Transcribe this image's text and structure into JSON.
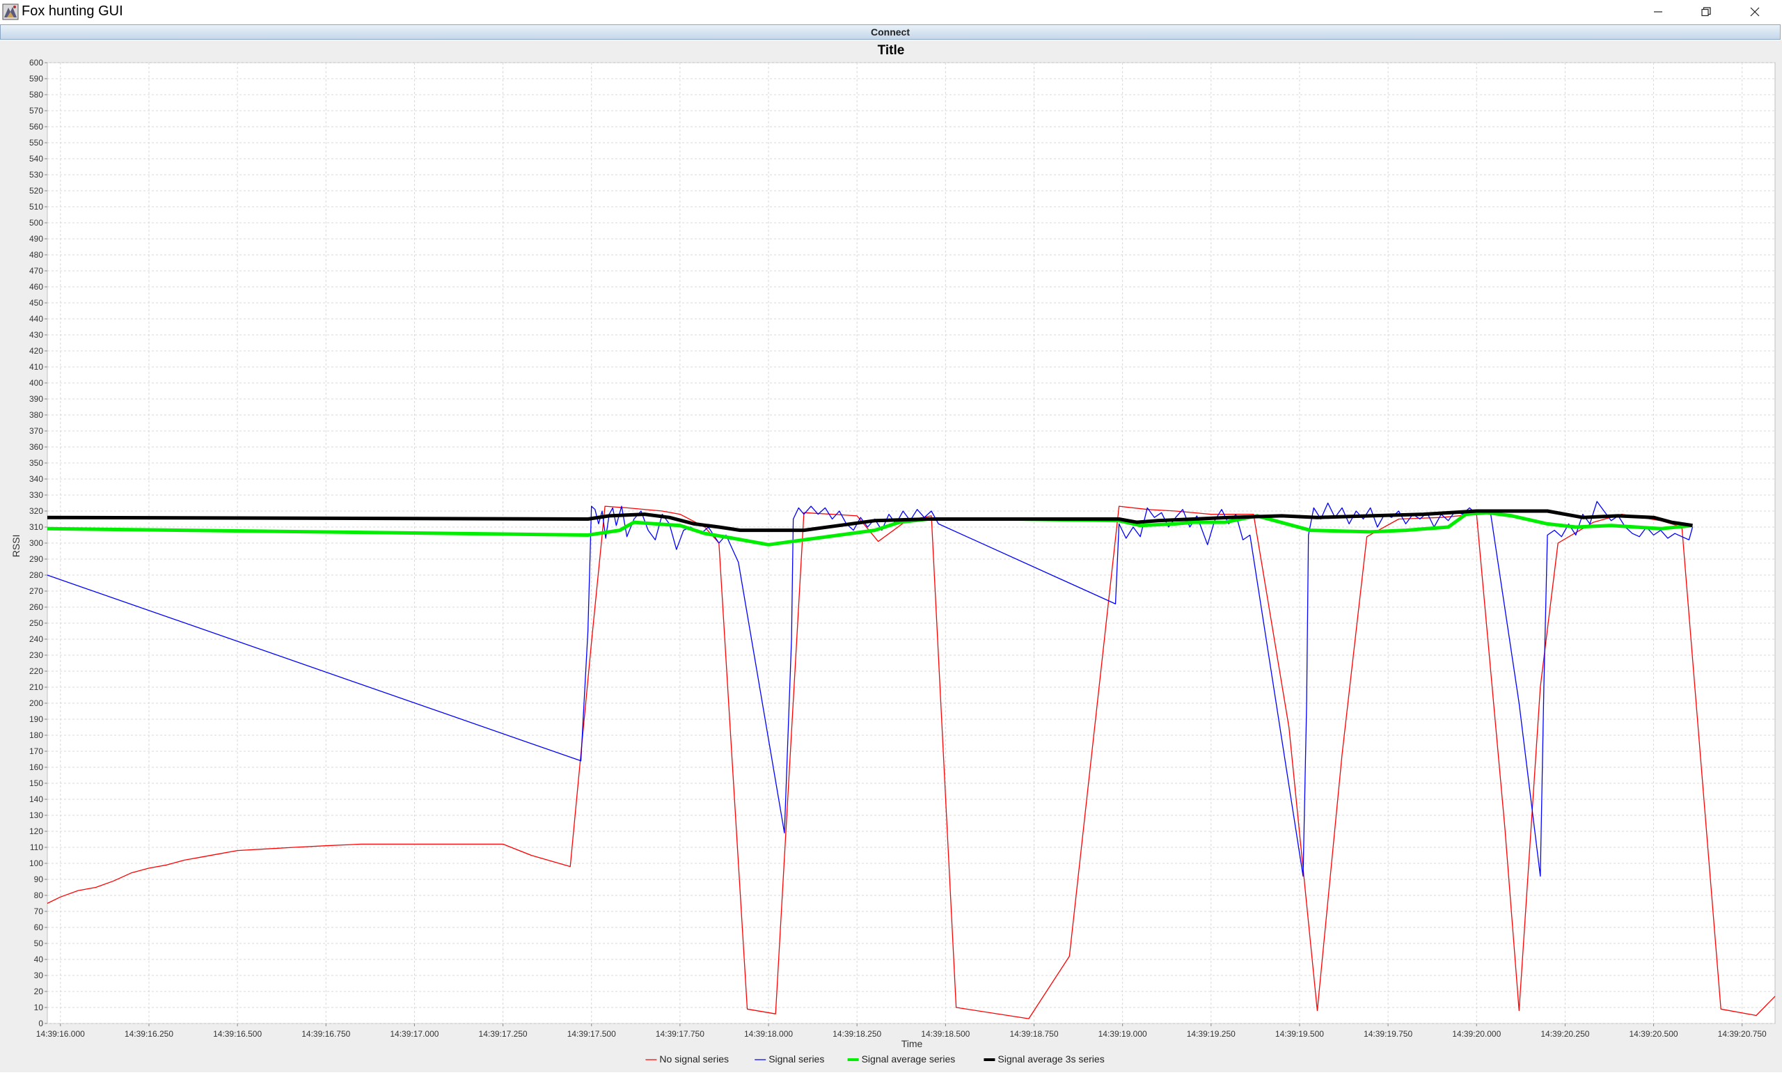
{
  "window": {
    "title": "Fox hunting GUI"
  },
  "toolbar": {
    "connect_label": "Connect"
  },
  "chart_data": {
    "type": "line",
    "title": "Title",
    "xlabel": "Time",
    "ylabel": "RSSI",
    "ylim": [
      0,
      600
    ],
    "xlim": [
      "14:39:15.963",
      "14:39:20.843"
    ],
    "y_ticks": [
      0,
      10,
      20,
      30,
      40,
      50,
      60,
      70,
      80,
      90,
      100,
      110,
      120,
      130,
      140,
      150,
      160,
      170,
      180,
      190,
      200,
      210,
      220,
      230,
      240,
      250,
      260,
      270,
      280,
      290,
      300,
      310,
      320,
      330,
      340,
      350,
      360,
      370,
      380,
      390,
      400,
      410,
      420,
      430,
      440,
      450,
      460,
      470,
      480,
      490,
      500,
      510,
      520,
      530,
      540,
      550,
      560,
      570,
      580,
      590,
      600
    ],
    "x_tick_labels": [
      "14:39:16.000",
      "14:39:16.250",
      "14:39:16.500",
      "14:39:16.750",
      "14:39:17.000",
      "14:39:17.250",
      "14:39:17.500",
      "14:39:17.750",
      "14:39:18.000",
      "14:39:18.250",
      "14:39:18.500",
      "14:39:18.750",
      "14:39:19.000",
      "14:39:19.250",
      "14:39:19.500",
      "14:39:19.750",
      "14:39:20.000",
      "14:39:20.250",
      "14:39:20.500",
      "14:39:20.750"
    ],
    "grid": true,
    "legend_position": "bottom",
    "series": [
      {
        "name": "No signal series",
        "color": "#ff0000",
        "width": 1.3,
        "points": [
          [
            "14:39:15.963",
            75
          ],
          [
            "14:39:16.000",
            79
          ],
          [
            "14:39:16.050",
            83
          ],
          [
            "14:39:16.100",
            85
          ],
          [
            "14:39:16.150",
            89
          ],
          [
            "14:39:16.200",
            94
          ],
          [
            "14:39:16.250",
            97
          ],
          [
            "14:39:16.300",
            99
          ],
          [
            "14:39:16.350",
            102
          ],
          [
            "14:39:16.400",
            104
          ],
          [
            "14:39:16.450",
            106
          ],
          [
            "14:39:16.500",
            108
          ],
          [
            "14:39:16.580",
            109
          ],
          [
            "14:39:16.660",
            110
          ],
          [
            "14:39:16.750",
            111
          ],
          [
            "14:39:16.850",
            112
          ],
          [
            "14:39:17.000",
            112
          ],
          [
            "14:39:17.120",
            112
          ],
          [
            "14:39:17.250",
            112
          ],
          [
            "14:39:17.330",
            105
          ],
          [
            "14:39:17.440",
            98
          ],
          [
            "14:39:17.500",
            238
          ],
          [
            "14:39:17.538",
            323
          ],
          [
            "14:39:17.600",
            322
          ],
          [
            "14:39:17.700",
            320
          ],
          [
            "14:39:17.750",
            318
          ],
          [
            "14:39:17.820",
            310
          ],
          [
            "14:39:17.860",
            300
          ],
          [
            "14:39:17.940",
            9
          ],
          [
            "14:39:18.020",
            6
          ],
          [
            "14:39:18.100",
            319
          ],
          [
            "14:39:18.180",
            318
          ],
          [
            "14:39:18.250",
            317
          ],
          [
            "14:39:18.310",
            301
          ],
          [
            "14:39:18.390",
            314
          ],
          [
            "14:39:18.460",
            317
          ],
          [
            "14:39:18.530",
            10
          ],
          [
            "14:39:18.735",
            3
          ],
          [
            "14:39:18.850",
            42
          ],
          [
            "14:39:18.990",
            323
          ],
          [
            "14:39:19.070",
            321
          ],
          [
            "14:39:19.150",
            320
          ],
          [
            "14:39:19.250",
            318
          ],
          [
            "14:39:19.370",
            318
          ],
          [
            "14:39:19.470",
            185
          ],
          [
            "14:39:19.550",
            8
          ],
          [
            "14:39:19.620",
            168
          ],
          [
            "14:39:19.690",
            304
          ],
          [
            "14:39:19.780",
            315
          ],
          [
            "14:39:19.900",
            316
          ],
          [
            "14:39:20.000",
            318
          ],
          [
            "14:39:20.080",
            122
          ],
          [
            "14:39:20.120",
            8
          ],
          [
            "14:39:20.180",
            210
          ],
          [
            "14:39:20.230",
            300
          ],
          [
            "14:39:20.330",
            313
          ],
          [
            "14:39:20.410",
            318
          ],
          [
            "14:39:20.520",
            314
          ],
          [
            "14:39:20.580",
            310
          ],
          [
            "14:39:20.690",
            9
          ],
          [
            "14:39:20.790",
            5
          ],
          [
            "14:39:20.843",
            17
          ]
        ]
      },
      {
        "name": "Signal series",
        "color": "#0000ff",
        "width": 1.3,
        "points": [
          [
            "14:39:15.963",
            280
          ],
          [
            "14:39:17.470",
            164
          ],
          [
            "14:39:17.490",
            245
          ],
          [
            "14:39:17.500",
            323
          ],
          [
            "14:39:17.510",
            321
          ],
          [
            "14:39:17.520",
            312
          ],
          [
            "14:39:17.530",
            320
          ],
          [
            "14:39:17.540",
            303
          ],
          [
            "14:39:17.550",
            318
          ],
          [
            "14:39:17.560",
            322
          ],
          [
            "14:39:17.570",
            311
          ],
          [
            "14:39:17.585",
            323
          ],
          [
            "14:39:17.600",
            304
          ],
          [
            "14:39:17.620",
            315
          ],
          [
            "14:39:17.640",
            320
          ],
          [
            "14:39:17.660",
            308
          ],
          [
            "14:39:17.680",
            302
          ],
          [
            "14:39:17.700",
            318
          ],
          [
            "14:39:17.720",
            312
          ],
          [
            "14:39:17.740",
            296
          ],
          [
            "14:39:17.760",
            308
          ],
          [
            "14:39:17.780",
            310
          ],
          [
            "14:39:17.810",
            306
          ],
          [
            "14:39:17.830",
            310
          ],
          [
            "14:39:17.860",
            300
          ],
          [
            "14:39:17.880",
            305
          ],
          [
            "14:39:17.915",
            288
          ],
          [
            "14:39:18.045",
            119
          ],
          [
            "14:39:18.065",
            240
          ],
          [
            "14:39:18.070",
            315
          ],
          [
            "14:39:18.085",
            322
          ],
          [
            "14:39:18.100",
            318
          ],
          [
            "14:39:18.120",
            323
          ],
          [
            "14:39:18.140",
            318
          ],
          [
            "14:39:18.160",
            322
          ],
          [
            "14:39:18.180",
            315
          ],
          [
            "14:39:18.200",
            320
          ],
          [
            "14:39:18.220",
            312
          ],
          [
            "14:39:18.240",
            308
          ],
          [
            "14:39:18.260",
            316
          ],
          [
            "14:39:18.280",
            310
          ],
          [
            "14:39:18.300",
            315
          ],
          [
            "14:39:18.320",
            308
          ],
          [
            "14:39:18.340",
            318
          ],
          [
            "14:39:18.360",
            312
          ],
          [
            "14:39:18.380",
            320
          ],
          [
            "14:39:18.400",
            314
          ],
          [
            "14:39:18.420",
            321
          ],
          [
            "14:39:18.440",
            316
          ],
          [
            "14:39:18.460",
            320
          ],
          [
            "14:39:18.480",
            312
          ],
          [
            "14:39:18.980",
            262
          ],
          [
            "14:39:18.990",
            312
          ],
          [
            "14:39:19.010",
            303
          ],
          [
            "14:39:19.030",
            310
          ],
          [
            "14:39:19.050",
            304
          ],
          [
            "14:39:19.070",
            322
          ],
          [
            "14:39:19.090",
            316
          ],
          [
            "14:39:19.110",
            319
          ],
          [
            "14:39:19.130",
            310
          ],
          [
            "14:39:19.150",
            316
          ],
          [
            "14:39:19.170",
            321
          ],
          [
            "14:39:19.190",
            310
          ],
          [
            "14:39:19.210",
            317
          ],
          [
            "14:39:19.240",
            299
          ],
          [
            "14:39:19.260",
            314
          ],
          [
            "14:39:19.280",
            321
          ],
          [
            "14:39:19.300",
            312
          ],
          [
            "14:39:19.320",
            318
          ],
          [
            "14:39:19.340",
            302
          ],
          [
            "14:39:19.360",
            305
          ],
          [
            "14:39:19.510",
            92
          ],
          [
            "14:39:19.520",
            200
          ],
          [
            "14:39:19.525",
            305
          ],
          [
            "14:39:19.540",
            322
          ],
          [
            "14:39:19.560",
            315
          ],
          [
            "14:39:19.580",
            325
          ],
          [
            "14:39:19.600",
            316
          ],
          [
            "14:39:19.620",
            322
          ],
          [
            "14:39:19.640",
            312
          ],
          [
            "14:39:19.660",
            320
          ],
          [
            "14:39:19.680",
            315
          ],
          [
            "14:39:19.700",
            322
          ],
          [
            "14:39:19.720",
            310
          ],
          [
            "14:39:19.740",
            318
          ],
          [
            "14:39:19.760",
            316
          ],
          [
            "14:39:19.780",
            320
          ],
          [
            "14:39:19.800",
            312
          ],
          [
            "14:39:19.820",
            318
          ],
          [
            "14:39:19.840",
            315
          ],
          [
            "14:39:19.860",
            319
          ],
          [
            "14:39:19.880",
            310
          ],
          [
            "14:39:19.900",
            318
          ],
          [
            "14:39:19.920",
            314
          ],
          [
            "14:39:19.940",
            320
          ],
          [
            "14:39:19.960",
            318
          ],
          [
            "14:39:19.980",
            322
          ],
          [
            "14:39:20.000",
            318
          ],
          [
            "14:39:20.020",
            320
          ],
          [
            "14:39:20.040",
            318
          ],
          [
            "14:39:20.120",
            200
          ],
          [
            "14:39:20.180",
            92
          ],
          [
            "14:39:20.190",
            210
          ],
          [
            "14:39:20.200",
            305
          ],
          [
            "14:39:20.220",
            308
          ],
          [
            "14:39:20.240",
            304
          ],
          [
            "14:39:20.260",
            312
          ],
          [
            "14:39:20.280",
            305
          ],
          [
            "14:39:20.300",
            318
          ],
          [
            "14:39:20.320",
            312
          ],
          [
            "14:39:20.340",
            326
          ],
          [
            "14:39:20.360",
            320
          ],
          [
            "14:39:20.380",
            314
          ],
          [
            "14:39:20.400",
            317
          ],
          [
            "14:39:20.420",
            310
          ],
          [
            "14:39:20.440",
            306
          ],
          [
            "14:39:20.460",
            304
          ],
          [
            "14:39:20.480",
            310
          ],
          [
            "14:39:20.500",
            305
          ],
          [
            "14:39:20.520",
            308
          ],
          [
            "14:39:20.540",
            303
          ],
          [
            "14:39:20.560",
            306
          ],
          [
            "14:39:20.580",
            304
          ],
          [
            "14:39:20.600",
            302
          ],
          [
            "14:39:20.610",
            310
          ]
        ]
      },
      {
        "name": "Signal average series",
        "color": "#00ee00",
        "width": 5,
        "points": [
          [
            "14:39:15.963",
            309
          ],
          [
            "14:39:17.490",
            305
          ],
          [
            "14:39:17.580",
            308
          ],
          [
            "14:39:17.620",
            313
          ],
          [
            "14:39:17.680",
            312
          ],
          [
            "14:39:17.750",
            311
          ],
          [
            "14:39:17.820",
            306
          ],
          [
            "14:39:17.900",
            303
          ],
          [
            "14:39:18.000",
            299
          ],
          [
            "14:39:18.100",
            302
          ],
          [
            "14:39:18.200",
            305
          ],
          [
            "14:39:18.300",
            308
          ],
          [
            "14:39:18.370",
            313
          ],
          [
            "14:39:18.450",
            315
          ],
          [
            "14:39:18.700",
            315
          ],
          [
            "14:39:18.990",
            314
          ],
          [
            "14:39:19.050",
            311
          ],
          [
            "14:39:19.150",
            312
          ],
          [
            "14:39:19.200",
            313
          ],
          [
            "14:39:19.290",
            313
          ],
          [
            "14:39:19.380",
            317
          ],
          [
            "14:39:19.530",
            308
          ],
          [
            "14:39:19.700",
            307
          ],
          [
            "14:39:19.800",
            308
          ],
          [
            "14:39:19.860",
            309
          ],
          [
            "14:39:19.920",
            310
          ],
          [
            "14:39:19.970",
            318
          ],
          [
            "14:39:20.030",
            319
          ],
          [
            "14:39:20.100",
            317
          ],
          [
            "14:39:20.200",
            312
          ],
          [
            "14:39:20.280",
            310
          ],
          [
            "14:39:20.380",
            311
          ],
          [
            "14:39:20.520",
            309
          ],
          [
            "14:39:20.610",
            311
          ]
        ]
      },
      {
        "name": "Signal average 3s series",
        "color": "#000000",
        "width": 5,
        "points": [
          [
            "14:39:15.963",
            316
          ],
          [
            "14:39:17.490",
            315
          ],
          [
            "14:39:17.550",
            317
          ],
          [
            "14:39:17.650",
            318
          ],
          [
            "14:39:17.720",
            316
          ],
          [
            "14:39:17.790",
            312
          ],
          [
            "14:39:17.860",
            310
          ],
          [
            "14:39:17.920",
            308
          ],
          [
            "14:39:18.100",
            308
          ],
          [
            "14:39:18.200",
            311
          ],
          [
            "14:39:18.300",
            314
          ],
          [
            "14:39:18.450",
            315
          ],
          [
            "14:39:18.700",
            315
          ],
          [
            "14:39:18.990",
            315
          ],
          [
            "14:39:19.040",
            313
          ],
          [
            "14:39:19.100",
            314
          ],
          [
            "14:39:19.200",
            315
          ],
          [
            "14:39:19.300",
            316
          ],
          [
            "14:39:19.450",
            317
          ],
          [
            "14:39:19.550",
            316
          ],
          [
            "14:39:19.700",
            317
          ],
          [
            "14:39:19.850",
            318
          ],
          [
            "14:39:20.000",
            320
          ],
          [
            "14:39:20.200",
            320
          ],
          [
            "14:39:20.300",
            316
          ],
          [
            "14:39:20.400",
            317
          ],
          [
            "14:39:20.500",
            316
          ],
          [
            "14:39:20.550",
            313
          ],
          [
            "14:39:20.610",
            311
          ]
        ]
      }
    ]
  }
}
